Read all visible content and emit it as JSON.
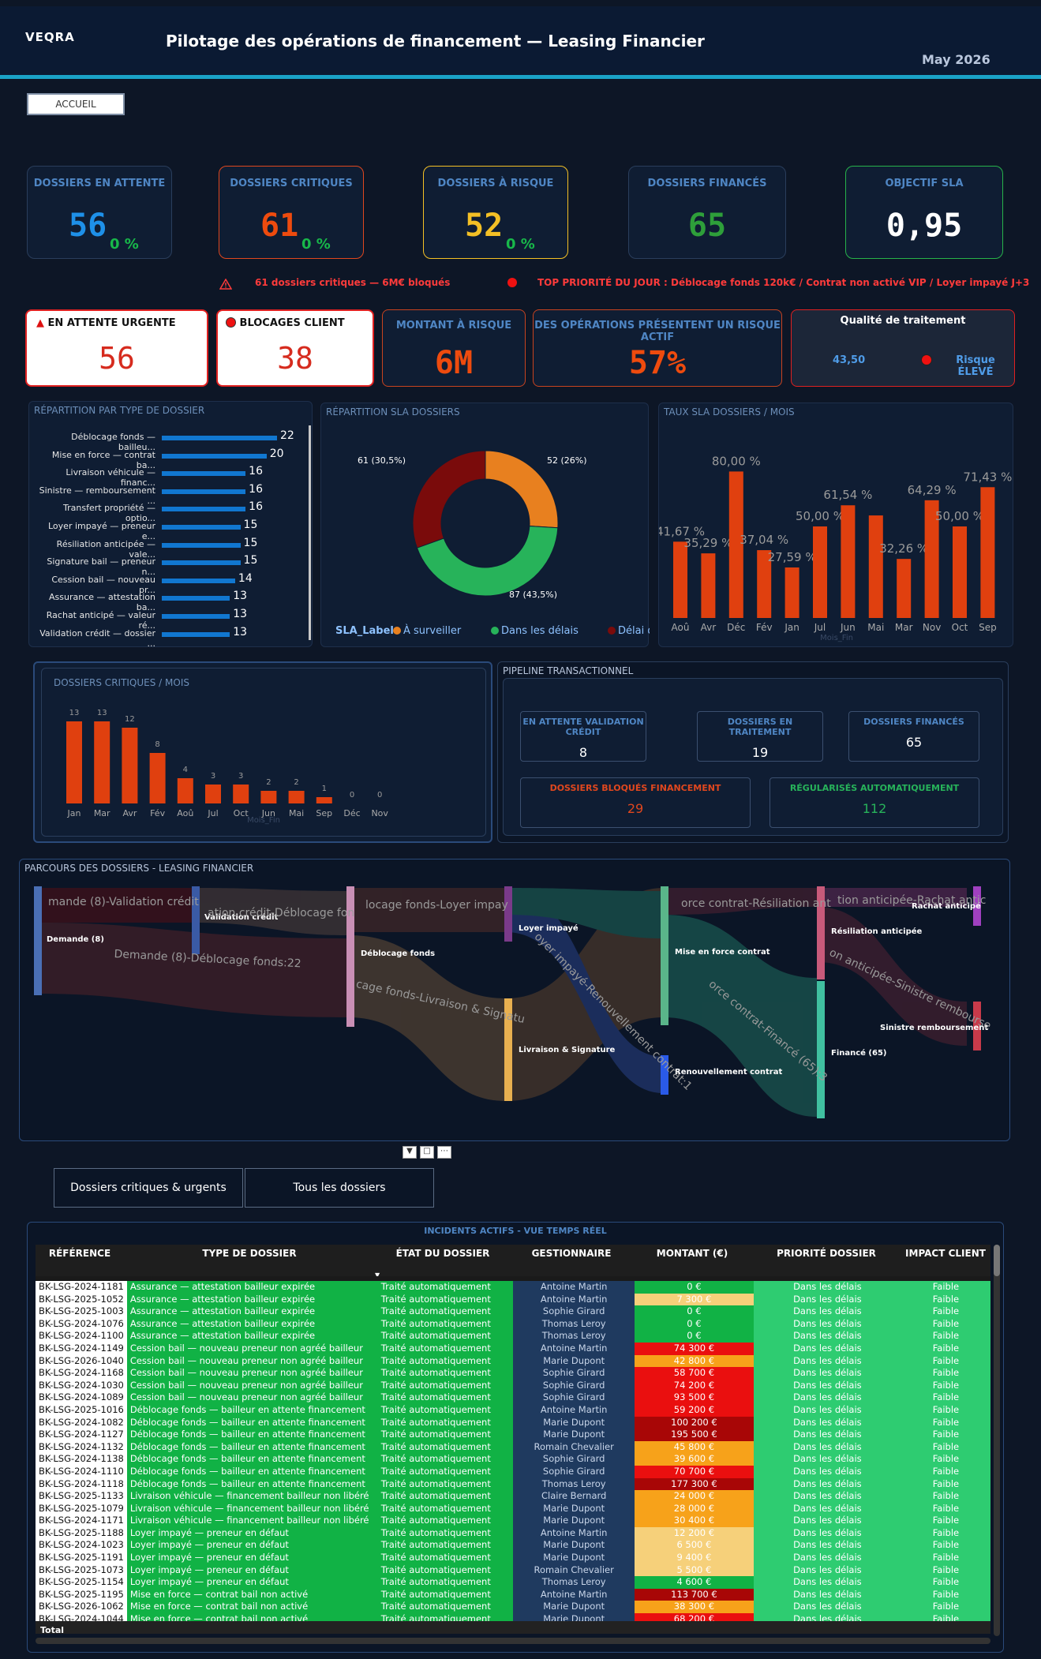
{
  "header": {
    "logo": "VEQRA",
    "title": "Pilotage des opérations de financement — Leasing Financier",
    "date": "May 2026",
    "home_label": "ACCUEIL"
  },
  "kpis": [
    {
      "label": "DOSSIERS EN ATTENTE",
      "value": "56",
      "pct": "0 %",
      "color": "#1e90e8",
      "border": "#2a3e5c"
    },
    {
      "label": "DOSSIERS CRITIQUES",
      "value": "61",
      "pct": "0 %",
      "color": "#ee4b0e",
      "border": "#e0471e"
    },
    {
      "label": "DOSSIERS À RISQUE",
      "value": "52",
      "pct": "0 %",
      "color": "#f4c025",
      "border": "#f4c025"
    },
    {
      "label": "DOSSIERS FINANCÉS",
      "value": "65",
      "pct": "",
      "color": "#2e9f3a",
      "border": "#2a3e5c"
    },
    {
      "label": "OBJECTIF SLA",
      "value": "0,95",
      "pct": "",
      "color": "#ffffff",
      "border": "#27b24a"
    }
  ],
  "alerts": {
    "critical": "61 dossiers critiques — 6M€ bloqués",
    "priority": "TOP PRIORITÉ DU JOUR  :  Déblocage fonds 120k€  /  Contrat non activé VIP  /  Loyer impayé J+3"
  },
  "cards": {
    "urgent": {
      "label": "EN ATTENTE URGENTE",
      "value": "56"
    },
    "blocage": {
      "label": "BLOCAGES CLIENT",
      "value": "38"
    },
    "montant": {
      "label": "MONTANT À RISQUE",
      "value": "6M"
    },
    "risque": {
      "label": "DES OPÉRATIONS PRÉSENTENT UN RISQUE ACTIF",
      "value": "57%"
    },
    "qualite": {
      "label": "Qualité de traitement",
      "score": "43,50",
      "level": "Risque ÉLEVÉ"
    }
  },
  "type_panel": {
    "title": "RÉPARTITION PAR TYPE DE DOSSIER",
    "rows": [
      {
        "label": "Déblocage fonds — bailleu...",
        "value": 22
      },
      {
        "label": "Mise en force — contrat ba...",
        "value": 20
      },
      {
        "label": "Livraison véhicule — financ...",
        "value": 16
      },
      {
        "label": "Sinistre — remboursement ...",
        "value": 16
      },
      {
        "label": "Transfert propriété — optio...",
        "value": 16
      },
      {
        "label": "Loyer impayé — preneur e...",
        "value": 15
      },
      {
        "label": "Résiliation anticipée — vale...",
        "value": 15
      },
      {
        "label": "Signature bail — preneur n...",
        "value": 15
      },
      {
        "label": "Cession bail — nouveau pr...",
        "value": 14
      },
      {
        "label": "Assurance — attestation ba...",
        "value": 13
      },
      {
        "label": "Rachat anticipé — valeur ré...",
        "value": 13
      },
      {
        "label": "Validation crédit — dossier ...",
        "value": 13
      }
    ]
  },
  "sla_panel": {
    "title": "RÉPARTITION SLA DOSSIERS",
    "legend_title": "SLA_Label",
    "slices": [
      {
        "label": "À surveiller",
        "value": 52,
        "text": "52 (26%)",
        "color": "#e8801f"
      },
      {
        "label": "Dans les délais",
        "value": 87,
        "text": "87 (43,5%)",
        "color": "#27b35a"
      },
      {
        "label": "Délai dépassé",
        "value": 61,
        "text": "61 (30,5%)",
        "color": "#7a0b0b"
      }
    ]
  },
  "rate_panel": {
    "title": "TAUX SLA DOSSIERS / MOIS",
    "xlabel": "Mois_Fin",
    "categories": [
      "Aoû",
      "Avr",
      "Déc",
      "Fév",
      "Jan",
      "Jul",
      "Jun",
      "Mai",
      "Mar",
      "Nov",
      "Oct",
      "Sep"
    ],
    "values": [
      41.67,
      35.29,
      80.0,
      37.04,
      27.59,
      50.0,
      61.54,
      56.0,
      32.26,
      64.29,
      50.0,
      71.43
    ],
    "labels": [
      "41,67 %",
      "35,29 %",
      "80,00 %",
      "37,04 %",
      "27,59 %",
      "50,00 %",
      "61,54 %",
      "",
      "32,26 %",
      "64,29 %",
      "50,00 %",
      "71,43 %"
    ]
  },
  "crit_panel": {
    "title": "DOSSIERS CRITIQUES / MOIS",
    "xlabel": "Mois_Fin",
    "categories": [
      "Jan",
      "Mar",
      "Avr",
      "Fév",
      "Aoû",
      "Jul",
      "Oct",
      "Jun",
      "Mai",
      "Sep",
      "Déc",
      "Nov"
    ],
    "values": [
      13,
      13,
      12,
      8,
      4,
      3,
      3,
      2,
      2,
      1,
      0,
      0
    ]
  },
  "pipeline": {
    "title": "PIPELINE TRANSACTIONNEL",
    "boxes": [
      {
        "label": "EN ATTENTE VALIDATION CRÉDIT",
        "value": "8"
      },
      {
        "label": "DOSSIERS EN TRAITEMENT",
        "value": "19"
      },
      {
        "label": "DOSSIERS FINANCÉS",
        "value": "65"
      },
      {
        "label": "DOSSIERS BLOQUÉS FINANCEMENT",
        "value": "29"
      },
      {
        "label": "RÉGULARISÉS AUTOMATIQUEMENT",
        "value": "112"
      }
    ]
  },
  "sankey": {
    "title": "PARCOURS DES DOSSIERS - LEASING FINANCIER",
    "nodes": [
      "Demande (8)",
      "Validation crédit",
      "Déblocage fonds",
      "Loyer impayé",
      "Livraison & Signature",
      "Mise en force contrat",
      "Renouvellement contrat",
      "Résiliation anticipée",
      "Rachat anticipé",
      "Financé (65)",
      "Sinistre remboursement"
    ],
    "flow_labels": [
      "mande (8)-Validation crédit",
      "ation crédit-Déblocage fon",
      "Demande (8)-Déblocage fonds:22",
      "locage fonds-Loyer impay",
      "cage fonds-Livraison & Signatu",
      "orce contrat-Résiliation ant",
      "tion anticipée-Rachat antic",
      "on anticipée-Sinistre rembourse",
      "orce contrat-Financé (65):3",
      "oyer impayé-Renouvellement contrat:1"
    ]
  },
  "tabs": {
    "critical": "Dossiers critiques & urgents",
    "all": "Tous les dossiers"
  },
  "table": {
    "title": "INCIDENTS ACTIFS - VUE TEMPS RÉEL",
    "columns": [
      "RÉFÉRENCE",
      "TYPE DE DOSSIER",
      "ÉTAT DU DOSSIER",
      "GESTIONNAIRE",
      "MONTANT (€)",
      "PRIORITÉ DOSSIER",
      "IMPACT CLIENT"
    ],
    "state": "Traité automatiquement",
    "priority": "Dans les délais",
    "impact": "Faible",
    "total_label": "Total",
    "rows": [
      [
        "BK-LSG-2024-1181",
        "Assurance — attestation bailleur expirée",
        "Antoine Martin",
        "0 €"
      ],
      [
        "BK-LSG-2025-1052",
        "Assurance — attestation bailleur expirée",
        "Antoine Martin",
        "7 300 €"
      ],
      [
        "BK-LSG-2025-1003",
        "Assurance — attestation bailleur expirée",
        "Sophie Girard",
        "0 €"
      ],
      [
        "BK-LSG-2024-1076",
        "Assurance — attestation bailleur expirée",
        "Thomas Leroy",
        "0 €"
      ],
      [
        "BK-LSG-2024-1100",
        "Assurance — attestation bailleur expirée",
        "Thomas Leroy",
        "0 €"
      ],
      [
        "BK-LSG-2024-1149",
        "Cession bail — nouveau preneur non agréé bailleur",
        "Antoine Martin",
        "74 300 €"
      ],
      [
        "BK-LSG-2026-1040",
        "Cession bail — nouveau preneur non agréé bailleur",
        "Marie Dupont",
        "42 800 €"
      ],
      [
        "BK-LSG-2024-1168",
        "Cession bail — nouveau preneur non agréé bailleur",
        "Sophie Girard",
        "58 700 €"
      ],
      [
        "BK-LSG-2024-1030",
        "Cession bail — nouveau preneur non agréé bailleur",
        "Sophie Girard",
        "74 200 €"
      ],
      [
        "BK-LSG-2024-1089",
        "Cession bail — nouveau preneur non agréé bailleur",
        "Sophie Girard",
        "93 500 €"
      ],
      [
        "BK-LSG-2025-1016",
        "Déblocage fonds — bailleur en attente financement",
        "Antoine Martin",
        "59 200 €"
      ],
      [
        "BK-LSG-2024-1082",
        "Déblocage fonds — bailleur en attente financement",
        "Marie Dupont",
        "100 200 €"
      ],
      [
        "BK-LSG-2024-1127",
        "Déblocage fonds — bailleur en attente financement",
        "Marie Dupont",
        "195 500 €"
      ],
      [
        "BK-LSG-2024-1132",
        "Déblocage fonds — bailleur en attente financement",
        "Romain Chevalier",
        "45 800 €"
      ],
      [
        "BK-LSG-2024-1138",
        "Déblocage fonds — bailleur en attente financement",
        "Sophie Girard",
        "39 600 €"
      ],
      [
        "BK-LSG-2024-1110",
        "Déblocage fonds — bailleur en attente financement",
        "Sophie Girard",
        "70 700 €"
      ],
      [
        "BK-LSG-2024-1118",
        "Déblocage fonds — bailleur en attente financement",
        "Thomas Leroy",
        "177 300 €"
      ],
      [
        "BK-LSG-2025-1133",
        "Livraison véhicule — financement bailleur non libéré",
        "Claire Bernard",
        "24 000 €"
      ],
      [
        "BK-LSG-2025-1079",
        "Livraison véhicule — financement bailleur non libéré",
        "Marie Dupont",
        "28 000 €"
      ],
      [
        "BK-LSG-2024-1171",
        "Livraison véhicule — financement bailleur non libéré",
        "Marie Dupont",
        "30 400 €"
      ],
      [
        "BK-LSG-2025-1188",
        "Loyer impayé — preneur en défaut",
        "Antoine Martin",
        "12 200 €"
      ],
      [
        "BK-LSG-2024-1023",
        "Loyer impayé — preneur en défaut",
        "Marie Dupont",
        "6 500 €"
      ],
      [
        "BK-LSG-2025-1191",
        "Loyer impayé — preneur en défaut",
        "Marie Dupont",
        "9 400 €"
      ],
      [
        "BK-LSG-2025-1073",
        "Loyer impayé — preneur en défaut",
        "Romain Chevalier",
        "5 500 €"
      ],
      [
        "BK-LSG-2025-1154",
        "Loyer impayé — preneur en défaut",
        "Thomas Leroy",
        "4 600 €"
      ],
      [
        "BK-LSG-2025-1195",
        "Mise en force — contrat bail non activé",
        "Antoine Martin",
        "113 700 €"
      ],
      [
        "BK-LSG-2026-1062",
        "Mise en force — contrat bail non activé",
        "Marie Dupont",
        "38 300 €"
      ],
      [
        "BK-LSG-2024-1044",
        "Mise en force — contrat bail non activé",
        "Marie Dupont",
        "68 200 €"
      ]
    ],
    "amount_colors": [
      "#11b245",
      "#f6d07a",
      "#11b245",
      "#11b245",
      "#11b245",
      "#ea0f0f",
      "#f7a21a",
      "#ea0f0f",
      "#ea0f0f",
      "#ea0f0f",
      "#ea0f0f",
      "#a80606",
      "#a80606",
      "#f7a21a",
      "#f7a21a",
      "#ea0f0f",
      "#a80606",
      "#f7a21a",
      "#f7a21a",
      "#f7a21a",
      "#f6d07a",
      "#f6d07a",
      "#f6d07a",
      "#f6d07a",
      "#11b245",
      "#a80606",
      "#f7a21a",
      "#ea0f0f"
    ]
  }
}
